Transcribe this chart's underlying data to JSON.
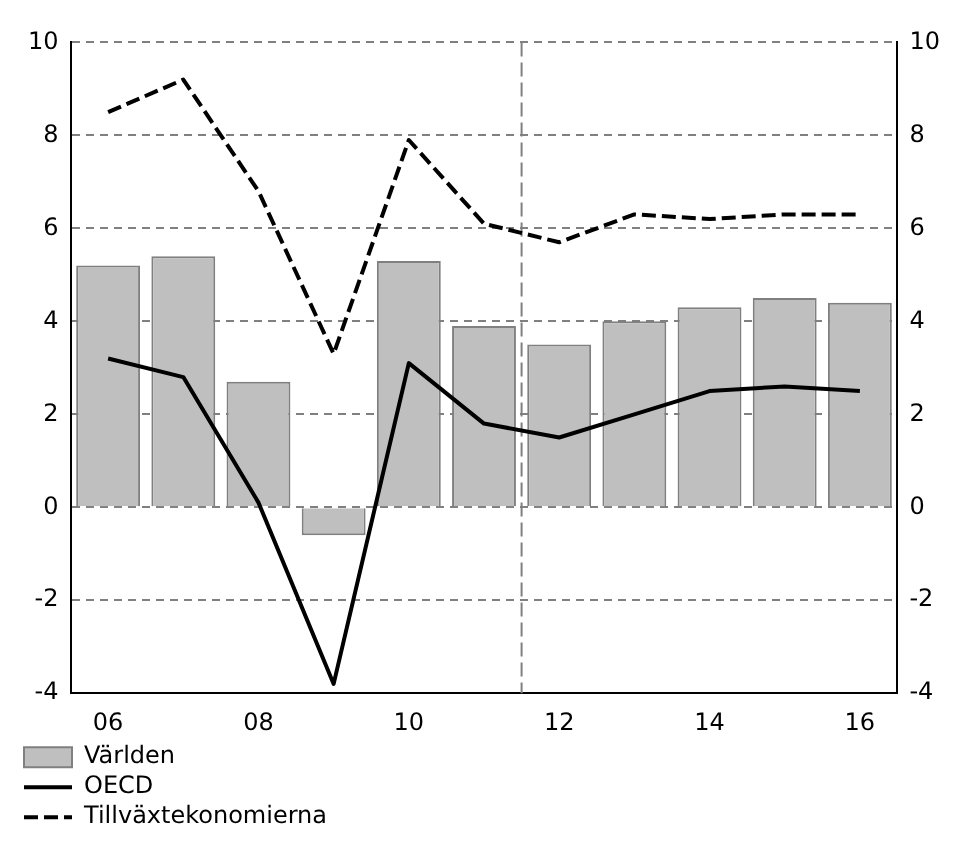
{
  "chart_data": {
    "type": "bar",
    "x": [
      2006,
      2007,
      2008,
      2009,
      2010,
      2011,
      2012,
      2013,
      2014,
      2015,
      2016
    ],
    "xlim": [
      2005.5,
      2016.5
    ],
    "xticks": [
      {
        "value": 2006,
        "label": "06"
      },
      {
        "value": 2008,
        "label": "08"
      },
      {
        "value": 2010,
        "label": "10"
      },
      {
        "value": 2012,
        "label": "12"
      },
      {
        "value": 2014,
        "label": "14"
      },
      {
        "value": 2016,
        "label": "16"
      }
    ],
    "ylim": [
      -4,
      10
    ],
    "yticks": [
      -4,
      -2,
      0,
      2,
      4,
      6,
      8,
      10
    ],
    "y2lim": [
      -4,
      10
    ],
    "y2ticks": [
      -4,
      -2,
      0,
      2,
      4,
      6,
      8,
      10
    ],
    "series": [
      {
        "name": "Världen",
        "color": "#bfbfbf",
        "values": [
          5.2,
          5.4,
          2.7,
          -0.6,
          5.3,
          3.9,
          3.5,
          4.0,
          4.3,
          4.5,
          4.4
        ]
      },
      {
        "name": "OECD",
        "type": "line",
        "color": "#000000",
        "line_style": "solid",
        "values": [
          3.2,
          2.8,
          0.1,
          -3.8,
          3.1,
          1.8,
          1.5,
          2.0,
          2.5,
          2.6,
          2.5
        ]
      },
      {
        "name": "Tillväxtekonomierna",
        "type": "line",
        "color": "#000000",
        "line_style": "dashed",
        "values": [
          8.5,
          9.2,
          6.8,
          3.3,
          7.9,
          6.1,
          5.7,
          6.3,
          6.2,
          6.3,
          6.3
        ]
      }
    ],
    "ref_lines": [
      {
        "axis": "x",
        "value": 2011.5,
        "color": "#808080",
        "line_style": "dashed"
      }
    ],
    "grid": "y",
    "legend": "bottom",
    "marker": "none"
  }
}
